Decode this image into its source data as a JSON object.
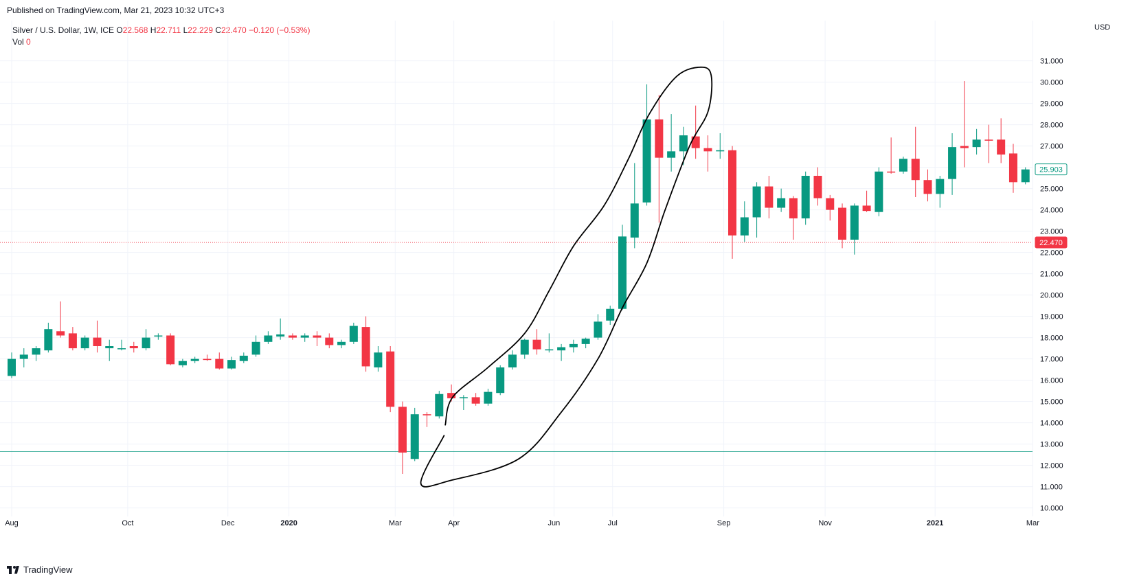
{
  "header": {
    "published": "Published on TradingView.com, Mar 21, 2023 10:32 UTC+3"
  },
  "legend": {
    "symbol": "Silver / U.S. Dollar, 1W, ICE",
    "open_label": "O",
    "open": "22.568",
    "high_label": "H",
    "high": "22.711",
    "low_label": "L",
    "low": "22.229",
    "close_label": "C",
    "close": "22.470",
    "change": "−0.120 (−0.53%)",
    "vol_label": "Vol",
    "vol": "0"
  },
  "footer": {
    "brand": "TradingView"
  },
  "colors": {
    "up": "#089981",
    "down": "#f23645",
    "grid": "#f0f3fa",
    "axis_text": "#131722",
    "current_line": "#f23645",
    "support_line": "#089981"
  },
  "chart_data": {
    "type": "candlestick",
    "timeframe": "1W",
    "y_unit": "USD",
    "ylim": [
      9.6,
      31.6
    ],
    "y_ticks": [
      10,
      11,
      12,
      13,
      14,
      15,
      16,
      17,
      18,
      19,
      20,
      21,
      22,
      23,
      24,
      25,
      26,
      27,
      28,
      29,
      30,
      31
    ],
    "x_ticks": [
      {
        "label": "Aug",
        "index": 0
      },
      {
        "label": "Oct",
        "index": 9.5
      },
      {
        "label": "Dec",
        "index": 17.7
      },
      {
        "label": "2020",
        "index": 22.7
      },
      {
        "label": "Mar",
        "index": 31.4
      },
      {
        "label": "Apr",
        "index": 36.2
      },
      {
        "label": "Jun",
        "index": 44.4
      },
      {
        "label": "Jul",
        "index": 49.2
      },
      {
        "label": "Sep",
        "index": 58.3
      },
      {
        "label": "Nov",
        "index": 66.6
      },
      {
        "label": "2021",
        "index": 75.6
      },
      {
        "label": "Mar",
        "index": 83.6
      }
    ],
    "price_labels": [
      {
        "value": 25.903,
        "text": "25.903",
        "style": "outline-up"
      },
      {
        "value": 22.47,
        "text": "22.470",
        "style": "fill-down"
      }
    ],
    "horizontal_lines": [
      {
        "value": 22.47,
        "style": "current"
      },
      {
        "value": 12.65,
        "style": "support"
      }
    ],
    "candles": [
      {
        "o": 16.2,
        "h": 17.3,
        "l": 16.1,
        "c": 17.0
      },
      {
        "o": 17.0,
        "h": 17.5,
        "l": 16.6,
        "c": 17.2
      },
      {
        "o": 17.2,
        "h": 17.6,
        "l": 16.9,
        "c": 17.5
      },
      {
        "o": 17.4,
        "h": 18.7,
        "l": 17.3,
        "c": 18.4
      },
      {
        "o": 18.3,
        "h": 19.7,
        "l": 18.0,
        "c": 18.1
      },
      {
        "o": 18.2,
        "h": 18.5,
        "l": 17.4,
        "c": 17.5
      },
      {
        "o": 17.5,
        "h": 18.1,
        "l": 17.4,
        "c": 18.0
      },
      {
        "o": 18.0,
        "h": 18.8,
        "l": 17.3,
        "c": 17.6
      },
      {
        "o": 17.5,
        "h": 17.9,
        "l": 16.9,
        "c": 17.6
      },
      {
        "o": 17.5,
        "h": 17.9,
        "l": 17.4,
        "c": 17.5
      },
      {
        "o": 17.6,
        "h": 17.8,
        "l": 17.3,
        "c": 17.5
      },
      {
        "o": 17.5,
        "h": 18.4,
        "l": 17.4,
        "c": 18.0
      },
      {
        "o": 18.05,
        "h": 18.2,
        "l": 17.9,
        "c": 18.1
      },
      {
        "o": 18.1,
        "h": 18.2,
        "l": 16.7,
        "c": 16.75
      },
      {
        "o": 16.7,
        "h": 17.0,
        "l": 16.6,
        "c": 16.9
      },
      {
        "o": 16.9,
        "h": 17.1,
        "l": 16.8,
        "c": 17.0
      },
      {
        "o": 17.0,
        "h": 17.2,
        "l": 16.9,
        "c": 16.95
      },
      {
        "o": 17.0,
        "h": 17.3,
        "l": 16.5,
        "c": 16.55
      },
      {
        "o": 16.55,
        "h": 17.1,
        "l": 16.5,
        "c": 16.95
      },
      {
        "o": 16.9,
        "h": 17.3,
        "l": 16.8,
        "c": 17.15
      },
      {
        "o": 17.2,
        "h": 18.1,
        "l": 17.1,
        "c": 17.8
      },
      {
        "o": 17.8,
        "h": 18.3,
        "l": 17.7,
        "c": 18.1
      },
      {
        "o": 18.05,
        "h": 18.9,
        "l": 17.9,
        "c": 18.15
      },
      {
        "o": 18.1,
        "h": 18.2,
        "l": 17.9,
        "c": 18.0
      },
      {
        "o": 18.0,
        "h": 18.2,
        "l": 17.8,
        "c": 18.1
      },
      {
        "o": 18.1,
        "h": 18.3,
        "l": 17.6,
        "c": 18.0
      },
      {
        "o": 18.0,
        "h": 18.2,
        "l": 17.5,
        "c": 17.65
      },
      {
        "o": 17.65,
        "h": 17.9,
        "l": 17.5,
        "c": 17.8
      },
      {
        "o": 17.8,
        "h": 18.7,
        "l": 17.7,
        "c": 18.55
      },
      {
        "o": 18.5,
        "h": 19.0,
        "l": 16.4,
        "c": 16.65
      },
      {
        "o": 16.6,
        "h": 17.6,
        "l": 16.4,
        "c": 17.3
      },
      {
        "o": 17.35,
        "h": 17.6,
        "l": 14.5,
        "c": 14.75
      },
      {
        "o": 14.75,
        "h": 15.0,
        "l": 11.6,
        "c": 12.6
      },
      {
        "o": 12.3,
        "h": 14.7,
        "l": 12.2,
        "c": 14.4
      },
      {
        "o": 14.4,
        "h": 14.5,
        "l": 13.8,
        "c": 14.35
      },
      {
        "o": 14.3,
        "h": 15.5,
        "l": 14.2,
        "c": 15.35
      },
      {
        "o": 15.4,
        "h": 15.8,
        "l": 15.0,
        "c": 15.15
      },
      {
        "o": 15.15,
        "h": 15.3,
        "l": 14.6,
        "c": 15.2
      },
      {
        "o": 15.2,
        "h": 15.4,
        "l": 14.8,
        "c": 14.9
      },
      {
        "o": 14.9,
        "h": 15.6,
        "l": 14.8,
        "c": 15.45
      },
      {
        "o": 15.4,
        "h": 16.7,
        "l": 15.3,
        "c": 16.6
      },
      {
        "o": 16.6,
        "h": 17.4,
        "l": 16.5,
        "c": 17.2
      },
      {
        "o": 17.2,
        "h": 17.95,
        "l": 17.0,
        "c": 17.9
      },
      {
        "o": 17.9,
        "h": 18.4,
        "l": 17.2,
        "c": 17.45
      },
      {
        "o": 17.4,
        "h": 18.2,
        "l": 17.3,
        "c": 17.45
      },
      {
        "o": 17.4,
        "h": 17.7,
        "l": 16.9,
        "c": 17.55
      },
      {
        "o": 17.55,
        "h": 17.9,
        "l": 17.3,
        "c": 17.7
      },
      {
        "o": 17.7,
        "h": 18.0,
        "l": 17.5,
        "c": 17.95
      },
      {
        "o": 18.0,
        "h": 19.1,
        "l": 17.9,
        "c": 18.75
      },
      {
        "o": 18.8,
        "h": 19.5,
        "l": 18.6,
        "c": 19.35
      },
      {
        "o": 19.35,
        "h": 23.3,
        "l": 19.3,
        "c": 22.75
      },
      {
        "o": 22.7,
        "h": 26.2,
        "l": 22.2,
        "c": 24.3
      },
      {
        "o": 24.35,
        "h": 29.9,
        "l": 24.2,
        "c": 28.25
      },
      {
        "o": 28.25,
        "h": 29.4,
        "l": 23.4,
        "c": 26.45
      },
      {
        "o": 26.45,
        "h": 28.5,
        "l": 25.8,
        "c": 26.75
      },
      {
        "o": 26.75,
        "h": 27.9,
        "l": 26.1,
        "c": 27.5
      },
      {
        "o": 27.45,
        "h": 28.9,
        "l": 26.4,
        "c": 26.9
      },
      {
        "o": 26.9,
        "h": 27.5,
        "l": 25.8,
        "c": 26.75
      },
      {
        "o": 26.75,
        "h": 27.6,
        "l": 26.4,
        "c": 26.8
      },
      {
        "o": 26.8,
        "h": 27.0,
        "l": 21.7,
        "c": 22.8
      },
      {
        "o": 22.8,
        "h": 24.4,
        "l": 22.5,
        "c": 23.65
      },
      {
        "o": 23.65,
        "h": 25.3,
        "l": 22.7,
        "c": 25.1
      },
      {
        "o": 25.1,
        "h": 25.6,
        "l": 23.6,
        "c": 24.1
      },
      {
        "o": 24.1,
        "h": 25.0,
        "l": 23.9,
        "c": 24.55
      },
      {
        "o": 24.55,
        "h": 24.65,
        "l": 22.6,
        "c": 23.6
      },
      {
        "o": 23.6,
        "h": 25.8,
        "l": 23.3,
        "c": 25.6
      },
      {
        "o": 25.6,
        "h": 26.0,
        "l": 24.2,
        "c": 24.55
      },
      {
        "o": 24.55,
        "h": 24.7,
        "l": 23.5,
        "c": 24.0
      },
      {
        "o": 24.1,
        "h": 24.3,
        "l": 22.2,
        "c": 22.6
      },
      {
        "o": 22.6,
        "h": 24.3,
        "l": 21.9,
        "c": 24.2
      },
      {
        "o": 24.2,
        "h": 24.9,
        "l": 23.9,
        "c": 23.95
      },
      {
        "o": 23.9,
        "h": 26.0,
        "l": 23.7,
        "c": 25.8
      },
      {
        "o": 25.8,
        "h": 27.4,
        "l": 25.7,
        "c": 25.75
      },
      {
        "o": 25.8,
        "h": 26.5,
        "l": 25.7,
        "c": 26.4
      },
      {
        "o": 26.4,
        "h": 27.9,
        "l": 24.6,
        "c": 25.4
      },
      {
        "o": 25.4,
        "h": 25.9,
        "l": 24.4,
        "c": 24.75
      },
      {
        "o": 24.75,
        "h": 25.6,
        "l": 24.1,
        "c": 25.45
      },
      {
        "o": 25.45,
        "h": 27.6,
        "l": 24.7,
        "c": 26.95
      },
      {
        "o": 27.0,
        "h": 30.05,
        "l": 26.0,
        "c": 26.9
      },
      {
        "o": 26.95,
        "h": 27.8,
        "l": 26.6,
        "c": 27.3
      },
      {
        "o": 27.3,
        "h": 28.0,
        "l": 26.2,
        "c": 27.25
      },
      {
        "o": 27.3,
        "h": 28.3,
        "l": 26.2,
        "c": 26.6
      },
      {
        "o": 26.65,
        "h": 27.1,
        "l": 24.8,
        "c": 25.3
      },
      {
        "o": 25.3,
        "h": 26.0,
        "l": 25.2,
        "c": 25.9
      }
    ],
    "annotation": {
      "type": "hand-drawn-loop",
      "points": [
        [
          35.4,
          13.4
        ],
        [
          33.5,
          11.15
        ],
        [
          36.0,
          11.3
        ],
        [
          41.5,
          12.3
        ],
        [
          45.0,
          14.5
        ],
        [
          48.0,
          17.0
        ],
        [
          50.0,
          19.4
        ],
        [
          52.0,
          21.5
        ],
        [
          53.5,
          24.0
        ],
        [
          55.5,
          27.0
        ],
        [
          57.0,
          28.6
        ],
        [
          57.3,
          30.2
        ],
        [
          56.6,
          30.7
        ],
        [
          54.5,
          30.3
        ],
        [
          52.2,
          28.5
        ],
        [
          50.5,
          26.4
        ],
        [
          48.5,
          24.2
        ],
        [
          46.0,
          22.3
        ],
        [
          44.0,
          20.2
        ],
        [
          42.0,
          18.2
        ],
        [
          39.0,
          16.6
        ],
        [
          36.1,
          15.2
        ],
        [
          35.5,
          13.9
        ]
      ]
    }
  }
}
